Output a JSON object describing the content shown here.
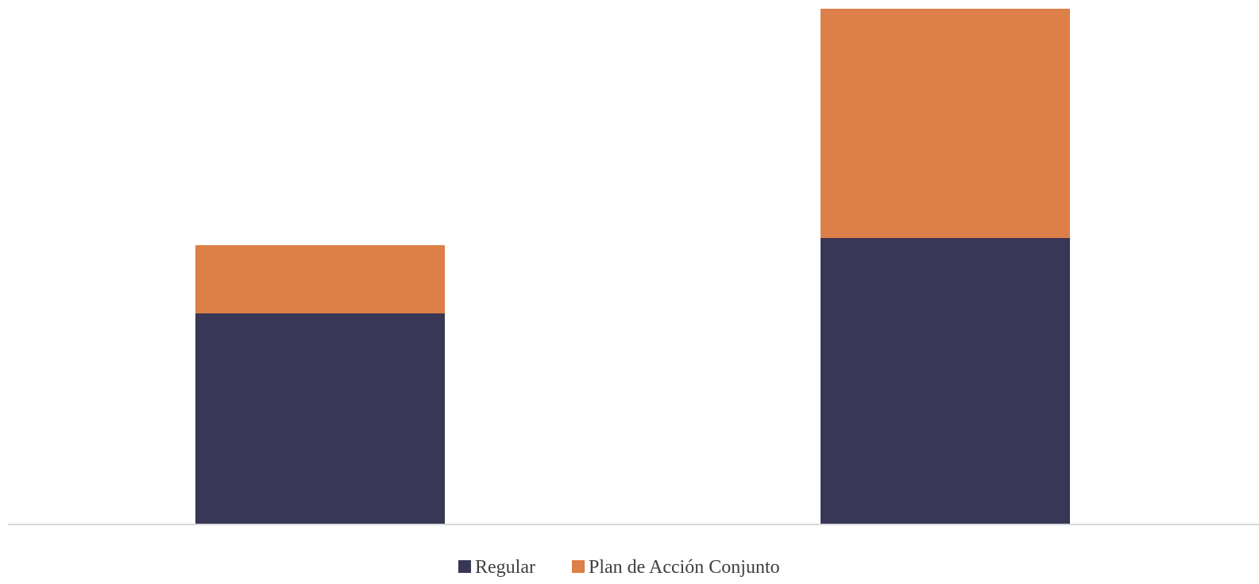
{
  "chart_data": {
    "type": "bar",
    "stacked": true,
    "categories": [
      "",
      ""
    ],
    "series": [
      {
        "name": "Regular",
        "values": [
          265,
          360
        ],
        "color": "#383756"
      },
      {
        "name": "Plan de Acción Conjunto",
        "values": [
          86,
          289
        ],
        "color": "#DC7F48"
      }
    ],
    "title": "",
    "xlabel": "",
    "ylabel": "",
    "ylim": [
      0,
      660
    ],
    "grid": false,
    "legend": "bottom-center"
  }
}
